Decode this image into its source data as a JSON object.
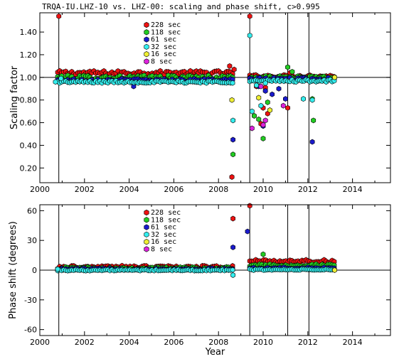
{
  "title": "TRQA-IU.LHZ-10 vs. LHZ-00: scaling and phase shift, c>0.995",
  "colors": {
    "228 sec": "#ee1111",
    "118 sec": "#22cc22",
    "61 sec": "#1a1acc",
    "32 sec": "#33eeee",
    "16 sec": "#eeee33",
    "8 sec": "#dd22dd"
  },
  "chart_data": [
    {
      "type": "scatter",
      "ylabel": "Scaling factor",
      "xlabel": "",
      "xlim": [
        2000,
        2015.7
      ],
      "ylim": [
        0.07,
        1.57
      ],
      "xticks": [
        "2000",
        "2002",
        "2004",
        "2006",
        "2008",
        "2010",
        "2012",
        "2014"
      ],
      "yticks": [
        "0.20",
        "0.40",
        "0.60",
        "0.80",
        "1.00",
        "1.20",
        "1.40"
      ],
      "reference_line": 1.0,
      "vertical_lines": [
        2000.85,
        2009.4,
        2011.1,
        2012.05
      ],
      "legend": [
        "228 sec",
        "118 sec",
        "61 sec",
        "32 sec",
        "16 sec",
        "8 sec"
      ],
      "series": [
        {
          "name": "228 sec",
          "bands": [
            {
              "from": 2000.8,
              "to": 2008.7,
              "center": 1.04,
              "spread": 0.018
            },
            {
              "from": 2009.4,
              "to": 2013.2,
              "center": 1.01,
              "spread": 0.012
            }
          ],
          "x": [
            2000.85,
            2008.5,
            2008.7,
            2008.6,
            2009.4,
            2009.7,
            2009.9,
            2010.0,
            2010.1,
            2010.2,
            2011.1,
            2011.2
          ],
          "y": [
            1.54,
            1.1,
            1.07,
            0.12,
            1.54,
            0.92,
            0.59,
            0.73,
            0.91,
            0.68,
            0.73,
            1.04
          ]
        },
        {
          "name": "118 sec",
          "bands": [
            {
              "from": 2000.8,
              "to": 2008.7,
              "center": 1.0,
              "spread": 0.018
            },
            {
              "from": 2009.4,
              "to": 2013.2,
              "center": 1.0,
              "spread": 0.012
            }
          ],
          "x": [
            2008.65,
            2009.6,
            2009.8,
            2010.0,
            2010.2,
            2011.1,
            2011.3,
            2012.2,
            2012.25
          ],
          "y": [
            0.32,
            0.66,
            0.63,
            0.46,
            0.78,
            1.09,
            1.05,
            0.81,
            0.62
          ]
        },
        {
          "name": "61 sec",
          "bands": [
            {
              "from": 2000.8,
              "to": 2008.7,
              "center": 0.975,
              "spread": 0.012
            },
            {
              "from": 2009.4,
              "to": 2013.2,
              "center": 0.985,
              "spread": 0.012
            }
          ],
          "x": [
            2004.2,
            2008.65,
            2009.8,
            2010.0,
            2010.1,
            2010.4,
            2010.7,
            2011.0,
            2012.2
          ],
          "y": [
            0.92,
            0.45,
            0.92,
            0.57,
            0.88,
            0.85,
            0.9,
            0.81,
            0.43
          ]
        },
        {
          "name": "32 sec",
          "bands": [
            {
              "from": 2000.8,
              "to": 2008.7,
              "center": 0.96,
              "spread": 0.01
            },
            {
              "from": 2009.4,
              "to": 2013.2,
              "center": 0.97,
              "spread": 0.01
            }
          ],
          "x": [
            2000.7,
            2000.95,
            2008.65,
            2009.4,
            2009.5,
            2009.7,
            2009.9,
            2010.1,
            2011.8,
            2012.2
          ],
          "y": [
            0.96,
            0.99,
            0.62,
            1.37,
            0.7,
            0.93,
            0.75,
            0.95,
            0.81,
            0.8
          ]
        },
        {
          "name": "16 sec",
          "bands": [],
          "x": [
            2008.6,
            2009.8,
            2010.3,
            2013.2
          ],
          "y": [
            0.8,
            0.82,
            0.71,
            1.0
          ]
        },
        {
          "name": "8 sec",
          "bands": [],
          "x": [
            2009.5,
            2009.9,
            2010.0,
            2010.1,
            2010.9
          ],
          "y": [
            0.55,
            0.92,
            0.58,
            0.62,
            0.75
          ]
        }
      ]
    },
    {
      "type": "scatter",
      "ylabel": "Phase shift (degrees)",
      "xlabel": "Year",
      "xlim": [
        2000,
        2015.7
      ],
      "ylim": [
        -66,
        66
      ],
      "xticks": [
        "2000",
        "2002",
        "2004",
        "2006",
        "2008",
        "2010",
        "2012",
        "2014"
      ],
      "yticks": [
        "-60",
        "-30",
        "0",
        "30",
        "60"
      ],
      "reference_line": 0,
      "vertical_lines": [
        2000.85,
        2009.4,
        2011.1,
        2012.05
      ],
      "legend": [
        "228 sec",
        "118 sec",
        "61 sec",
        "32 sec",
        "16 sec",
        "8 sec"
      ],
      "series": [
        {
          "name": "228 sec",
          "bands": [
            {
              "from": 2000.8,
              "to": 2008.7,
              "center": 3.0,
              "spread": 1.5
            },
            {
              "from": 2009.4,
              "to": 2013.2,
              "center": 9.0,
              "spread": 1.5
            }
          ],
          "x": [
            2008.65,
            2009.4
          ],
          "y": [
            52,
            65
          ]
        },
        {
          "name": "118 sec",
          "bands": [
            {
              "from": 2000.8,
              "to": 2008.7,
              "center": 2.0,
              "spread": 1.2
            },
            {
              "from": 2009.4,
              "to": 2013.2,
              "center": 5.0,
              "spread": 1.2
            }
          ],
          "x": [
            2010.0
          ],
          "y": [
            16
          ]
        },
        {
          "name": "61 sec",
          "bands": [
            {
              "from": 2000.8,
              "to": 2008.7,
              "center": 1.0,
              "spread": 0.8
            },
            {
              "from": 2009.4,
              "to": 2013.2,
              "center": 2.0,
              "spread": 0.8
            }
          ],
          "x": [
            2008.65,
            2009.3
          ],
          "y": [
            23,
            39
          ]
        },
        {
          "name": "32 sec",
          "bands": [
            {
              "from": 2000.8,
              "to": 2008.7,
              "center": 0.0,
              "spread": 0.6
            },
            {
              "from": 2009.4,
              "to": 2013.2,
              "center": 0.5,
              "spread": 0.6
            }
          ],
          "x": [
            2008.65,
            2000.8
          ],
          "y": [
            -5,
            1
          ]
        },
        {
          "name": "16 sec",
          "bands": [],
          "x": [
            2013.2
          ],
          "y": [
            0
          ]
        },
        {
          "name": "8 sec",
          "bands": [],
          "x": [],
          "y": []
        }
      ]
    }
  ]
}
